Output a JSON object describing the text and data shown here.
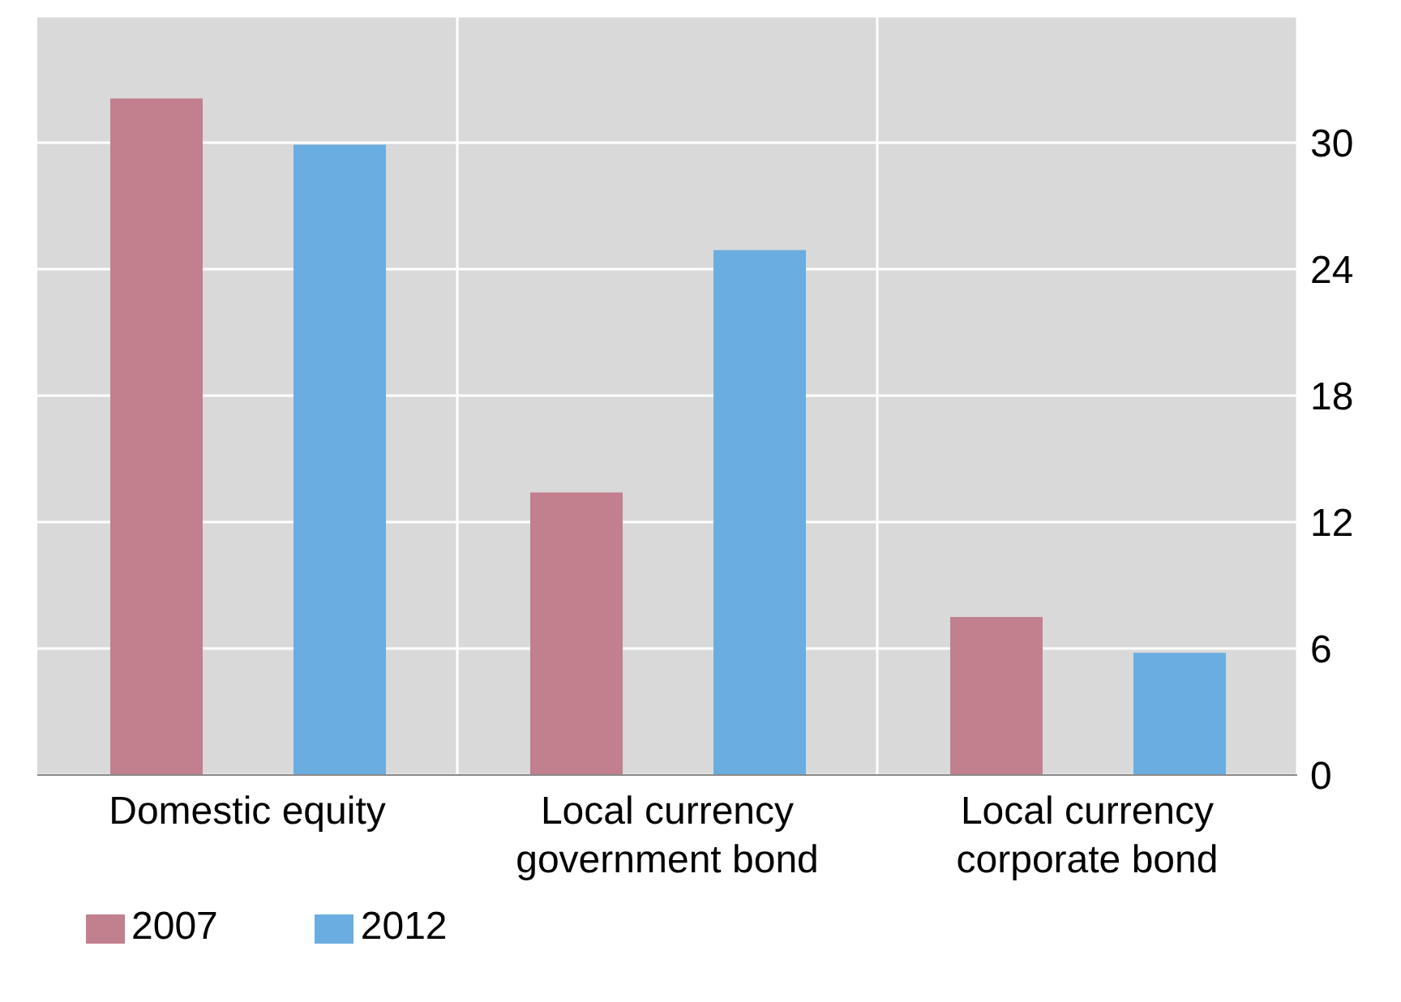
{
  "chart_data": {
    "type": "bar",
    "categories": [
      "Domestic equity",
      "Local currency government bond",
      "Local currency corporate bond"
    ],
    "series": [
      {
        "name": "2007",
        "color": "#c27f8d",
        "values": [
          32.1,
          13.4,
          7.5
        ]
      },
      {
        "name": "2012",
        "color": "#6aade0",
        "values": [
          29.9,
          24.9,
          5.8
        ]
      }
    ],
    "ylim": [
      0,
      36
    ],
    "yticks": [
      0,
      6,
      12,
      18,
      24,
      30
    ],
    "grid": true,
    "legend": "bottom left"
  }
}
